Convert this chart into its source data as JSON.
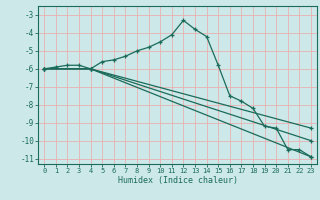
{
  "title": "",
  "xlabel": "Humidex (Indice chaleur)",
  "background_color": "#cce8e8",
  "grid_color": "#e8b0b0",
  "line_color": "#1a6b5a",
  "xlim": [
    -0.5,
    23.5
  ],
  "ylim": [
    -11.3,
    -2.5
  ],
  "xticks": [
    0,
    1,
    2,
    3,
    4,
    5,
    6,
    7,
    8,
    9,
    10,
    11,
    12,
    13,
    14,
    15,
    16,
    17,
    18,
    19,
    20,
    21,
    22,
    23
  ],
  "yticks": [
    -3,
    -4,
    -5,
    -6,
    -7,
    -8,
    -9,
    -10,
    -11
  ],
  "series1_x": [
    0,
    1,
    2,
    3,
    4,
    5,
    6,
    7,
    8,
    9,
    10,
    11,
    12,
    13,
    14,
    15,
    16,
    17,
    18,
    19,
    20,
    21,
    22,
    23
  ],
  "series1_y": [
    -6.0,
    -5.9,
    -5.8,
    -5.8,
    -6.0,
    -5.6,
    -5.5,
    -5.3,
    -5.0,
    -4.8,
    -4.5,
    -4.1,
    -3.3,
    -3.8,
    -4.2,
    -5.8,
    -7.5,
    -7.8,
    -8.2,
    -9.2,
    -9.3,
    -10.5,
    -10.5,
    -10.9
  ],
  "series2_x": [
    0,
    4,
    23
  ],
  "series2_y": [
    -6.0,
    -6.0,
    -9.3
  ],
  "series3_x": [
    0,
    4,
    23
  ],
  "series3_y": [
    -6.0,
    -6.0,
    -10.0
  ],
  "series4_x": [
    0,
    4,
    23
  ],
  "series4_y": [
    -6.0,
    -6.0,
    -10.9
  ]
}
